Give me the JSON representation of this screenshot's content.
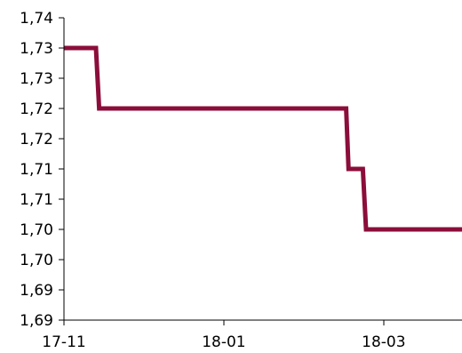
{
  "chart_data": {
    "type": "line",
    "title": "",
    "xlabel": "",
    "ylabel": "",
    "y_tick_labels": [
      "1,74",
      "1,73",
      "1,73",
      "1,72",
      "1,72",
      "1,71",
      "1,71",
      "1,70",
      "1,70",
      "1,69",
      "1,69"
    ],
    "ylim": [
      1.6875,
      1.7375
    ],
    "x_tick_labels": [
      "17-11",
      "18-01",
      "18-03"
    ],
    "x_tick_positions": [
      0,
      2,
      4
    ],
    "xlim": [
      0,
      4.98
    ],
    "grid": false,
    "legend": "none",
    "series": [
      {
        "color": "#8b0e3a",
        "x": [
          0,
          0.4,
          0.44,
          3.53,
          3.56,
          3.74,
          3.78,
          4.98
        ],
        "y": [
          1.7325,
          1.7325,
          1.7225,
          1.7225,
          1.7125,
          1.7125,
          1.7025,
          1.7025
        ]
      }
    ]
  }
}
